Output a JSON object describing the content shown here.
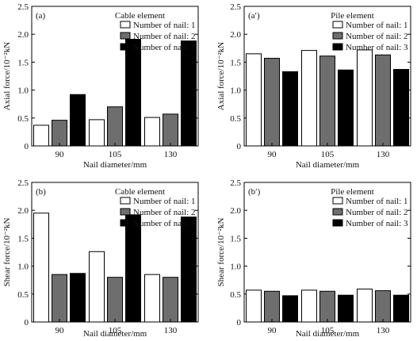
{
  "colors": {
    "series_fills": [
      "#ffffff",
      "#6e6e6e",
      "#000000"
    ],
    "axis": "#000000"
  },
  "chart_data": [
    {
      "type": "bar",
      "panel_tag": "(a)",
      "title": "Cable element",
      "xlabel": "Nail diameter/mm",
      "ylabel": "Axial force/10⁻²kN",
      "categories": [
        "90",
        "105",
        "130"
      ],
      "ylim": [
        0,
        2.5
      ],
      "yticks": [
        "0",
        "0.5",
        "1.0",
        "1.5",
        "2.0",
        "2.5"
      ],
      "legend_position": "top-right",
      "series": [
        {
          "name": "Number of nail: 1",
          "values": [
            0.37,
            0.47,
            0.51
          ]
        },
        {
          "name": "Number of nail: 2",
          "values": [
            0.46,
            0.7,
            0.57
          ]
        },
        {
          "name": "Number of nail: 3",
          "values": [
            0.92,
            1.91,
            1.88
          ]
        }
      ]
    },
    {
      "type": "bar",
      "panel_tag": "(a′)",
      "title": "Pile element",
      "xlabel": "Nail diameter/mm",
      "ylabel": "Axial force/10⁻²kN",
      "categories": [
        "90",
        "105",
        "130"
      ],
      "ylim": [
        0,
        2.5
      ],
      "yticks": [
        "0",
        "0.5",
        "1.0",
        "1.5",
        "2.0",
        "2.5"
      ],
      "legend_position": "top-right",
      "series": [
        {
          "name": "Number of nail: 1",
          "values": [
            1.65,
            1.71,
            1.72
          ]
        },
        {
          "name": "Number of nail: 2",
          "values": [
            1.57,
            1.61,
            1.63
          ]
        },
        {
          "name": "Number of nail: 3",
          "values": [
            1.33,
            1.36,
            1.37
          ]
        }
      ]
    },
    {
      "type": "bar",
      "panel_tag": "(b)",
      "title": "Cable element",
      "xlabel": "Nail diameter/mm",
      "ylabel": "Shear force/10⁻²kN",
      "categories": [
        "90",
        "105",
        "130"
      ],
      "ylim": [
        0,
        2.5
      ],
      "yticks": [
        "0",
        "0.5",
        "1.0",
        "1.5",
        "2.0",
        "2.5"
      ],
      "legend_position": "top-right",
      "series": [
        {
          "name": "Number of nail: 1",
          "values": [
            1.95,
            1.26,
            0.85
          ]
        },
        {
          "name": "Number of nail: 2",
          "values": [
            0.85,
            0.8,
            0.8
          ]
        },
        {
          "name": "Number of nail: 3",
          "values": [
            0.87,
            1.92,
            1.88
          ]
        }
      ]
    },
    {
      "type": "bar",
      "panel_tag": "(b′)",
      "title": "Pile element",
      "xlabel": "Nail diameter/mm",
      "ylabel": "Shear force/10⁻²kN",
      "categories": [
        "90",
        "105",
        "130"
      ],
      "ylim": [
        0,
        2.5
      ],
      "yticks": [
        "0",
        "0.5",
        "1.0",
        "1.5",
        "2.0",
        "2.5"
      ],
      "legend_position": "top-right",
      "series": [
        {
          "name": "Number of nail: 1",
          "values": [
            0.57,
            0.57,
            0.59
          ]
        },
        {
          "name": "Number of nail: 2",
          "values": [
            0.55,
            0.55,
            0.56
          ]
        },
        {
          "name": "Number of nail: 3",
          "values": [
            0.47,
            0.48,
            0.48
          ]
        }
      ]
    }
  ]
}
